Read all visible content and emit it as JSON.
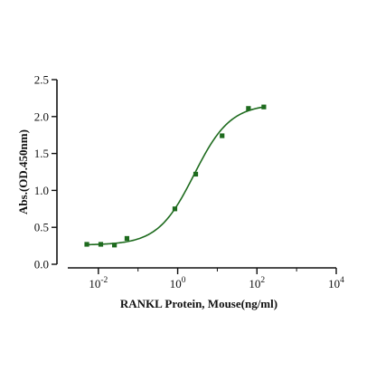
{
  "chart_data": {
    "type": "scatter",
    "xlabel": "RANKL Protein, Mouse(ng/ml)",
    "ylabel": "Abs.(OD.450nm)",
    "x_scale": "log",
    "xlim": [
      0.001,
      10000
    ],
    "ylim": [
      0,
      2.5
    ],
    "x_ticks": [
      {
        "value": 0.01,
        "base": "10",
        "exp": "-2"
      },
      {
        "value": 1,
        "base": "10",
        "exp": "0"
      },
      {
        "value": 100,
        "base": "10",
        "exp": "2"
      },
      {
        "value": 10000,
        "base": "10",
        "exp": "4"
      }
    ],
    "y_ticks": [
      {
        "value": 0,
        "label": "0.0"
      },
      {
        "value": 0.5,
        "label": "0.5"
      },
      {
        "value": 1.0,
        "label": "1.0"
      },
      {
        "value": 1.5,
        "label": "1.5"
      },
      {
        "value": 2.0,
        "label": "2.0"
      },
      {
        "value": 2.5,
        "label": "2.5"
      }
    ],
    "points": [
      {
        "x": 0.0051,
        "y": 0.27
      },
      {
        "x": 0.0115,
        "y": 0.27
      },
      {
        "x": 0.0254,
        "y": 0.26
      },
      {
        "x": 0.0525,
        "y": 0.35
      },
      {
        "x": 0.85,
        "y": 0.75
      },
      {
        "x": 2.85,
        "y": 1.22
      },
      {
        "x": 13.2,
        "y": 1.74
      },
      {
        "x": 61,
        "y": 2.11
      },
      {
        "x": 149,
        "y": 2.13
      }
    ],
    "fit": {
      "bottom": 0.26,
      "top": 2.17,
      "ec50": 2.6,
      "hill": 0.95
    },
    "grid": false,
    "legend": "none",
    "colors": {
      "series": "#1e6b1e",
      "axes": "#111111"
    }
  }
}
